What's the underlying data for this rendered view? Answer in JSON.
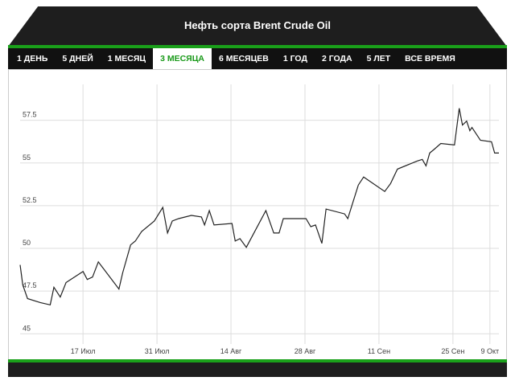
{
  "chart_data": {
    "type": "line",
    "title": "Нефть сорта Brent Crude Oil",
    "color": "#222222",
    "grid": true,
    "x": [
      -11.9,
      -11.4,
      -10.5,
      -8.1,
      -6.2,
      -5.5,
      -4.3,
      -3.2,
      0,
      0.8,
      1.8,
      2.9,
      6.8,
      7.5,
      9.0,
      9.9,
      11.1,
      13.5,
      15.1,
      16.0,
      16.9,
      18.1,
      20.5,
      22.4,
      23.0,
      23.9,
      24.8,
      28.2,
      28.8,
      29.7,
      30.9,
      34.6,
      36.1,
      37.1,
      37.9,
      42.2,
      43.1,
      44.0,
      45.2,
      46.0,
      49.5,
      50.1,
      52.1,
      53.1,
      57.1,
      58.2,
      59.5,
      63.2,
      64.2,
      64.9,
      65.6,
      66.5,
      67.7,
      70.3,
      71.2,
      71.8,
      72.6,
      73.2,
      73.6,
      75.2,
      77.3,
      77.9,
      78.7
    ],
    "values": [
      49.03,
      47.86,
      47.06,
      46.83,
      46.69,
      47.72,
      47.15,
      48.0,
      48.65,
      48.18,
      48.32,
      49.21,
      47.62,
      48.56,
      50.2,
      50.43,
      50.99,
      51.6,
      52.4,
      50.9,
      51.6,
      51.74,
      51.93,
      51.84,
      51.37,
      52.21,
      51.37,
      51.46,
      50.43,
      50.57,
      50.06,
      52.21,
      50.9,
      50.9,
      51.74,
      51.74,
      51.27,
      51.37,
      50.29,
      52.3,
      52.02,
      51.74,
      53.71,
      54.18,
      53.33,
      53.8,
      54.64,
      55.11,
      55.21,
      54.83,
      55.58,
      55.81,
      56.14,
      56.05,
      58.2,
      57.22,
      57.45,
      56.89,
      57.08,
      56.33,
      56.24,
      55.58,
      55.58
    ],
    "xlim": [
      -11.9,
      78.7
    ],
    "xticks": [
      {
        "value": 0,
        "label": "17 Июл"
      },
      {
        "value": 14,
        "label": "31 Июл"
      },
      {
        "value": 28,
        "label": "14 Авг"
      },
      {
        "value": 42,
        "label": "28 Авг"
      },
      {
        "value": 56,
        "label": "11 Сен"
      },
      {
        "value": 70,
        "label": "25 Сен"
      },
      {
        "value": 77,
        "label": "9 Окт"
      }
    ],
    "ylim": [
      44.4,
      59.6
    ],
    "yticks": [
      45,
      47.5,
      50,
      52.5,
      55,
      57.5
    ]
  },
  "tabs": [
    "1 ДЕНЬ",
    "5 ДНЕЙ",
    "1 МЕСЯЦ",
    "3 МЕСЯЦА",
    "6 МЕСЯЦЕВ",
    "1 ГОД",
    "2 ГОДА",
    "5 ЛЕТ",
    "ВСЕ ВРЕМЯ"
  ]
}
